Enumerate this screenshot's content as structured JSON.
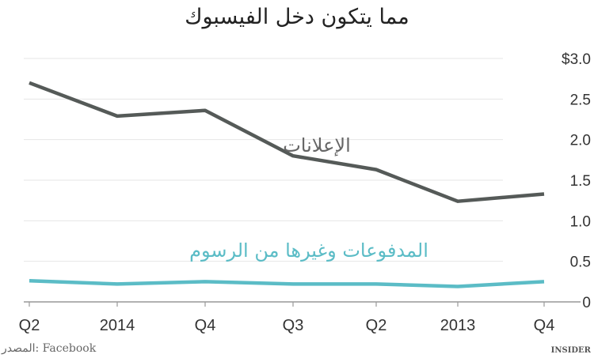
{
  "chart_data": {
    "type": "line",
    "title": "مما يتكون دخل الفيسبوك",
    "categories": [
      "Q2",
      "2014",
      "Q4",
      "Q3",
      "Q2",
      "2013",
      "Q4"
    ],
    "series": [
      {
        "name": "الإعلانات",
        "color": "#555a58",
        "values": [
          2.7,
          2.29,
          2.36,
          1.8,
          1.63,
          1.24,
          1.33
        ]
      },
      {
        "name": "المدفوعات وغيرها من الرسوم",
        "color": "#5bbcc6",
        "values": [
          0.26,
          0.22,
          0.25,
          0.22,
          0.22,
          0.19,
          0.25
        ]
      }
    ],
    "yticks": [
      "0",
      "0.5",
      "1.0",
      "1.5",
      "2.0",
      "2.5",
      "$3.0"
    ],
    "ylim": [
      0,
      3.0
    ],
    "grid": true,
    "yaxis_position": "right"
  },
  "source": "المصدر: Facebook",
  "brand": "INSIDER"
}
